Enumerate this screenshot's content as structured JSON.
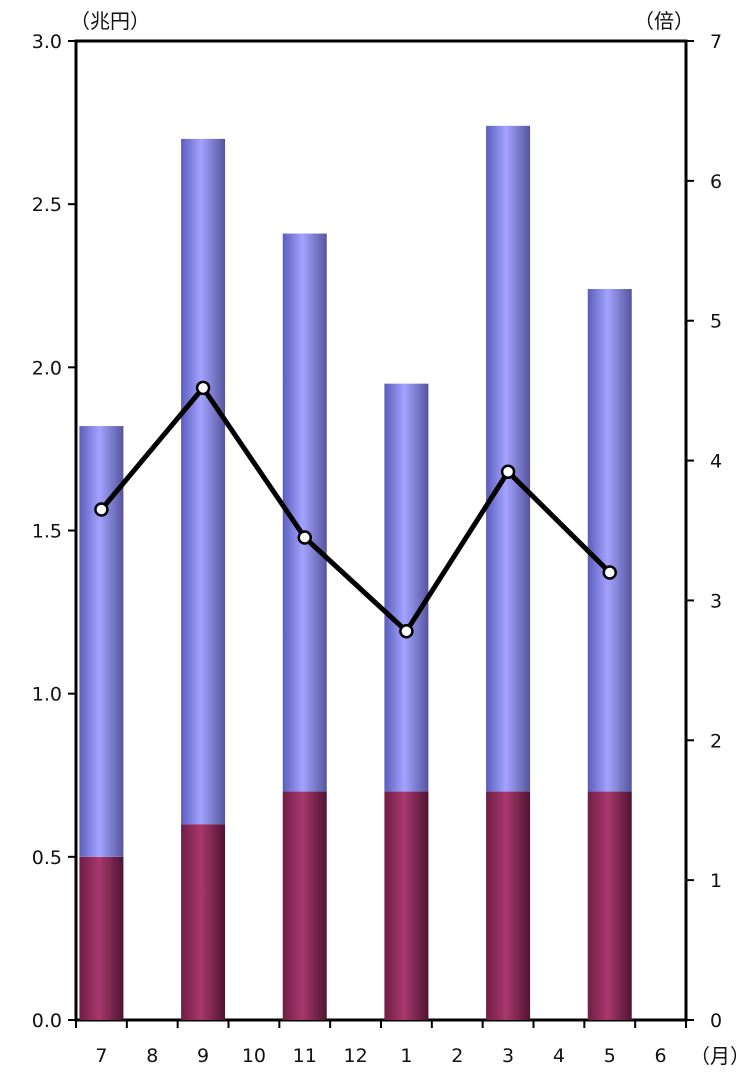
{
  "chart_data": {
    "type": "bar",
    "left_axis_unit": "（兆円）",
    "right_axis_unit": "（倍）",
    "x_axis_unit": "（月）",
    "categories": [
      "7",
      "8",
      "9",
      "10",
      "11",
      "12",
      "1",
      "2",
      "3",
      "4",
      "5",
      "6"
    ],
    "left_ylim": [
      0,
      3.0
    ],
    "right_ylim": [
      0,
      7
    ],
    "left_ticks": [
      "0.0",
      "0.5",
      "1.0",
      "1.5",
      "2.0",
      "2.5",
      "3.0"
    ],
    "right_ticks": [
      "0",
      "1",
      "2",
      "3",
      "4",
      "5",
      "6",
      "7"
    ],
    "bar_series": [
      {
        "color": "#8b2558",
        "values": [
          0.5,
          null,
          0.6,
          null,
          0.7,
          null,
          0.7,
          null,
          0.7,
          null,
          0.7,
          null
        ]
      },
      {
        "color": "#8a8af0",
        "values": [
          1.32,
          null,
          2.1,
          null,
          1.71,
          null,
          1.25,
          null,
          2.04,
          null,
          1.54,
          null
        ]
      }
    ],
    "line_series": {
      "axis": "right",
      "color": "#000000",
      "values": [
        3.65,
        null,
        4.52,
        null,
        3.45,
        null,
        2.78,
        null,
        3.92,
        null,
        3.2,
        null
      ]
    },
    "grid": false,
    "legend": "none"
  }
}
